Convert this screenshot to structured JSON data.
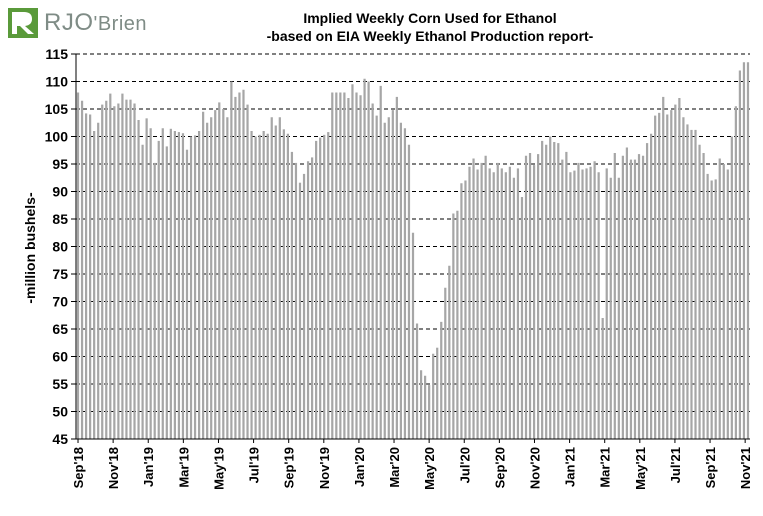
{
  "logo": {
    "text_main": "RJO",
    "text_tail": "'Brien",
    "accent": "#5a9a3a"
  },
  "chart_data": {
    "type": "bar",
    "title": "Implied  Weekly Corn Used for Ethanol",
    "subtitle": "-based on EIA Weekly Ethanol Production report-",
    "xlabel": "",
    "ylabel": "-million bushels-",
    "ylim": [
      45,
      115
    ],
    "yticks": [
      45,
      50,
      55,
      60,
      65,
      70,
      75,
      80,
      85,
      90,
      95,
      100,
      105,
      110,
      115
    ],
    "grid": true,
    "bar_color": "#a6a6a6",
    "x_tick_labels": [
      "Sep'18",
      "Nov'18",
      "Jan'19",
      "Mar'19",
      "May'19",
      "Jul'19",
      "Sep'19",
      "Nov'19",
      "Jan'20",
      "Mar'20",
      "May'20",
      "Jul'20",
      "Sep'20",
      "Nov'20",
      "Jan'21",
      "Mar'21",
      "May'21",
      "Jul'21",
      "Sep'21",
      "Nov'21"
    ],
    "x_tick_positions": [
      0,
      8.7,
      17.4,
      26.1,
      34.8,
      43.5,
      52.2,
      60.9,
      69.6,
      78.3,
      87,
      95.7,
      104.4,
      113.1,
      121.8,
      130.5,
      139.2,
      147.9,
      156.6,
      165.3
    ],
    "values": [
      108,
      106.5,
      104.2,
      104,
      101,
      102.5,
      105.8,
      106.5,
      107.8,
      105.5,
      106,
      107.8,
      106.7,
      106.7,
      106,
      103,
      98.5,
      103.3,
      101.5,
      95.2,
      99.2,
      101.5,
      98.2,
      101.4,
      101,
      100.8,
      100.6,
      97.6,
      100,
      100.2,
      101,
      104.5,
      102.5,
      103.5,
      104.8,
      106.2,
      105,
      103.5,
      110,
      107.2,
      108,
      108.5,
      105.8,
      101,
      100,
      100.3,
      101,
      100.5,
      103.5,
      102,
      103.5,
      101.3,
      100.5,
      97.2,
      95.2,
      91.6,
      93.2,
      95.5,
      96.2,
      99.2,
      99.8,
      100.3,
      100.8,
      108,
      108,
      108,
      108,
      107,
      109.5,
      108,
      107.5,
      110.5,
      110,
      106,
      103.8,
      109.2,
      102.5,
      103.5,
      104.8,
      107.2,
      102.5,
      101.5,
      98.5,
      82.5,
      66,
      57.5,
      56.5,
      54.8,
      60.5,
      61.6,
      66.3,
      72.5,
      76.5,
      86,
      86.5,
      91.5,
      92,
      94.5,
      96,
      94,
      95.2,
      96.5,
      94.2,
      93.5,
      95.2,
      94.2,
      93.5,
      94.5,
      92.5,
      94.2,
      89,
      96.5,
      97,
      94.8,
      96.8,
      99.2,
      98.5,
      100,
      99,
      98.8,
      95.8,
      97.2,
      93.5,
      93.8,
      95.2,
      94,
      94.2,
      94.5,
      95.5,
      93.5,
      67,
      94.2,
      92.5,
      97,
      92.5,
      96.5,
      98,
      95.8,
      95.8,
      96.8,
      96.5,
      98.8,
      100.5,
      103.8,
      104.3,
      107.2,
      104,
      104.8,
      105.8,
      107,
      103.5,
      102.2,
      101.2,
      101.2,
      98.5,
      97,
      93.2,
      92,
      92.2,
      96,
      95,
      94,
      100,
      105.5,
      112,
      113.5,
      113.5
    ]
  }
}
